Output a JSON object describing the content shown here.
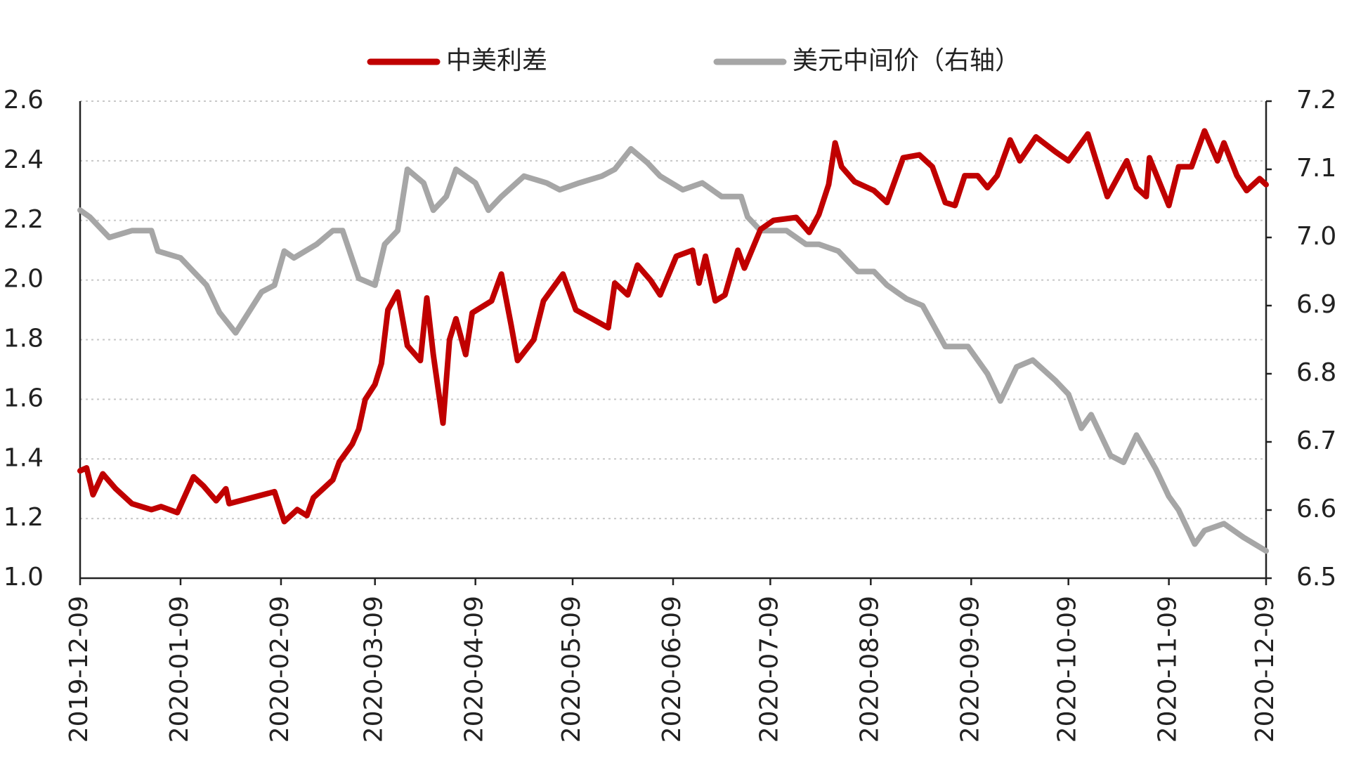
{
  "chart_data": {
    "type": "line",
    "xlim": [
      "2019-12-09",
      "2020-12-09"
    ],
    "xticks": [
      "2019-12-09",
      "2020-01-09",
      "2020-02-09",
      "2020-03-09",
      "2020-04-09",
      "2020-05-09",
      "2020-06-09",
      "2020-07-09",
      "2020-08-09",
      "2020-09-09",
      "2020-10-09",
      "2020-11-09",
      "2020-12-09"
    ],
    "ylim": [
      1,
      2.6
    ],
    "yticks": [
      {
        "value": 1,
        "label": "1.0"
      },
      1.2,
      1.4,
      1.6,
      1.8,
      {
        "value": 2,
        "label": "2.0"
      },
      2.2,
      2.4,
      2.6
    ],
    "y2lim": [
      6.5,
      7.2
    ],
    "y2ticks": [
      6.5,
      6.6,
      6.7,
      6.8,
      6.9,
      {
        "value": 7,
        "label": "7.0"
      },
      7.1,
      7.2
    ],
    "grid": true,
    "legend": "top",
    "series": [
      {
        "name": "中美利差",
        "color": "#c00000",
        "x": [
          "2019-12-09",
          "2019-12-11",
          "2019-12-13",
          "2019-12-16",
          "2019-12-20",
          "2019-12-25",
          "2019-12-31",
          "2020-01-03",
          "2020-01-08",
          "2020-01-13",
          "2020-01-16",
          "2020-01-20",
          "2020-01-23",
          "2020-01-24",
          "2020-02-07",
          "2020-02-10",
          "2020-02-14",
          "2020-02-17",
          "2020-02-19",
          "2020-02-25",
          "2020-02-27",
          "2020-03-02",
          "2020-03-04",
          "2020-03-06",
          "2020-03-09",
          "2020-03-11",
          "2020-03-13",
          "2020-03-16",
          "2020-03-19",
          "2020-03-23",
          "2020-03-25",
          "2020-03-27",
          "2020-03-30",
          "2020-04-01",
          "2020-04-03",
          "2020-04-06",
          "2020-04-08",
          "2020-04-14",
          "2020-04-17",
          "2020-04-20",
          "2020-04-22",
          "2020-04-27",
          "2020-04-30",
          "2020-05-06",
          "2020-05-10",
          "2020-05-15",
          "2020-05-20",
          "2020-05-22",
          "2020-05-26",
          "2020-05-29",
          "2020-06-02",
          "2020-06-05",
          "2020-06-10",
          "2020-06-15",
          "2020-06-17",
          "2020-06-19",
          "2020-06-22",
          "2020-06-25",
          "2020-06-29",
          "2020-07-01",
          "2020-07-06",
          "2020-07-10",
          "2020-07-17",
          "2020-07-21",
          "2020-07-24",
          "2020-07-27",
          "2020-07-29",
          "2020-07-31",
          "2020-08-04",
          "2020-08-10",
          "2020-08-14",
          "2020-08-19",
          "2020-08-24",
          "2020-08-28",
          "2020-09-01",
          "2020-09-04",
          "2020-09-07",
          "2020-09-11",
          "2020-09-14",
          "2020-09-17",
          "2020-09-21",
          "2020-09-24",
          "2020-09-29",
          "2020-10-05",
          "2020-10-09",
          "2020-10-15",
          "2020-10-21",
          "2020-10-27",
          "2020-10-30",
          "2020-11-02",
          "2020-11-03",
          "2020-11-06",
          "2020-11-09",
          "2020-11-12",
          "2020-11-16",
          "2020-11-20",
          "2020-11-24",
          "2020-11-26",
          "2020-11-30",
          "2020-12-03",
          "2020-12-07",
          "2020-12-09"
        ],
        "values": [
          1.36,
          1.37,
          1.28,
          1.35,
          1.3,
          1.25,
          1.23,
          1.24,
          1.22,
          1.34,
          1.31,
          1.26,
          1.3,
          1.25,
          1.29,
          1.19,
          1.23,
          1.21,
          1.27,
          1.33,
          1.39,
          1.45,
          1.5,
          1.6,
          1.65,
          1.72,
          1.9,
          1.96,
          1.78,
          1.73,
          1.94,
          1.75,
          1.52,
          1.8,
          1.87,
          1.75,
          1.89,
          1.93,
          2.02,
          1.85,
          1.73,
          1.8,
          1.93,
          2.02,
          1.9,
          1.87,
          1.84,
          1.99,
          1.95,
          2.05,
          2.0,
          1.95,
          2.08,
          2.1,
          1.99,
          2.08,
          1.93,
          1.95,
          2.1,
          2.04,
          2.17,
          2.2,
          2.21,
          2.16,
          2.22,
          2.32,
          2.46,
          2.38,
          2.33,
          2.3,
          2.26,
          2.41,
          2.42,
          2.38,
          2.26,
          2.25,
          2.35,
          2.35,
          2.31,
          2.35,
          2.47,
          2.4,
          2.48,
          2.43,
          2.4,
          2.49,
          2.28,
          2.4,
          2.31,
          2.28,
          2.41,
          2.33,
          2.25,
          2.38,
          2.38,
          2.5,
          2.4,
          2.46,
          2.35,
          2.3,
          2.34,
          2.32
        ]
      },
      {
        "name": "美元中间价（右轴）",
        "color": "#a6a6a6",
        "axis": "y2",
        "x": [
          "2019-12-09",
          "2019-12-12",
          "2019-12-18",
          "2019-12-25",
          "2019-12-31",
          "2020-01-02",
          "2020-01-09",
          "2020-01-13",
          "2020-01-17",
          "2020-01-21",
          "2020-01-26",
          "2020-02-03",
          "2020-02-07",
          "2020-02-10",
          "2020-02-13",
          "2020-02-20",
          "2020-02-25",
          "2020-02-28",
          "2020-03-04",
          "2020-03-09",
          "2020-03-12",
          "2020-03-16",
          "2020-03-19",
          "2020-03-24",
          "2020-03-27",
          "2020-03-31",
          "2020-04-03",
          "2020-04-09",
          "2020-04-13",
          "2020-04-17",
          "2020-04-24",
          "2020-05-01",
          "2020-05-05",
          "2020-05-11",
          "2020-05-18",
          "2020-05-22",
          "2020-05-27",
          "2020-06-01",
          "2020-06-05",
          "2020-06-12",
          "2020-06-18",
          "2020-06-24",
          "2020-06-30",
          "2020-07-02",
          "2020-07-06",
          "2020-07-14",
          "2020-07-20",
          "2020-07-24",
          "2020-07-30",
          "2020-08-05",
          "2020-08-10",
          "2020-08-14",
          "2020-08-20",
          "2020-08-25",
          "2020-09-01",
          "2020-09-08",
          "2020-09-14",
          "2020-09-18",
          "2020-09-23",
          "2020-09-28",
          "2020-10-05",
          "2020-10-09",
          "2020-10-13",
          "2020-10-16",
          "2020-10-22",
          "2020-10-26",
          "2020-10-30",
          "2020-11-05",
          "2020-11-09",
          "2020-11-12",
          "2020-11-17",
          "2020-11-20",
          "2020-11-26",
          "2020-12-02",
          "2020-12-09"
        ],
        "values": [
          7.04,
          7.03,
          7.0,
          7.01,
          7.01,
          6.98,
          6.97,
          6.95,
          6.93,
          6.89,
          6.86,
          6.92,
          6.93,
          6.98,
          6.97,
          6.99,
          7.01,
          7.01,
          6.94,
          6.93,
          6.99,
          7.01,
          7.1,
          7.08,
          7.04,
          7.06,
          7.1,
          7.08,
          7.04,
          7.06,
          7.09,
          7.08,
          7.07,
          7.08,
          7.09,
          7.1,
          7.13,
          7.11,
          7.09,
          7.07,
          7.08,
          7.06,
          7.06,
          7.03,
          7.01,
          7.01,
          6.99,
          6.99,
          6.98,
          6.95,
          6.95,
          6.93,
          6.91,
          6.9,
          6.84,
          6.84,
          6.8,
          6.76,
          6.81,
          6.82,
          6.79,
          6.77,
          6.72,
          6.74,
          6.68,
          6.67,
          6.71,
          6.66,
          6.62,
          6.6,
          6.55,
          6.57,
          6.58,
          6.56,
          6.54
        ]
      }
    ]
  }
}
